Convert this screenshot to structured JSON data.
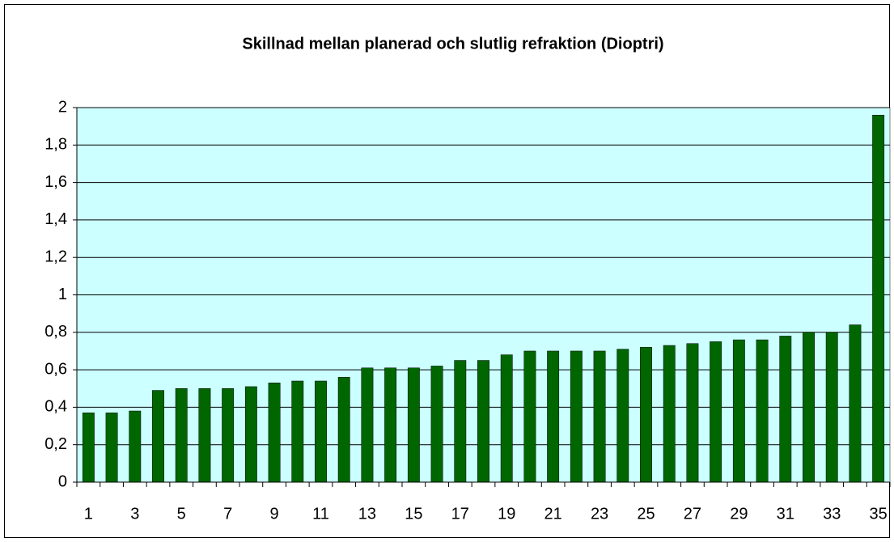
{
  "chart_data": {
    "type": "bar",
    "title": "Skillnad mellan planerad och slutlig refraktion (Dioptri)",
    "categories": [
      "1",
      null,
      "3",
      null,
      "5",
      null,
      "7",
      null,
      "9",
      null,
      "11",
      null,
      "13",
      null,
      "15",
      null,
      "17",
      null,
      "19",
      null,
      "21",
      null,
      "23",
      null,
      "25",
      null,
      "27",
      null,
      "29",
      null,
      "31",
      null,
      "33",
      null,
      "35"
    ],
    "values": [
      0.37,
      0.37,
      0.38,
      0.49,
      0.5,
      0.5,
      0.5,
      0.51,
      0.53,
      0.54,
      0.54,
      0.56,
      0.61,
      0.61,
      0.61,
      0.62,
      0.65,
      0.65,
      0.68,
      0.7,
      0.7,
      0.7,
      0.7,
      0.71,
      0.72,
      0.73,
      0.74,
      0.75,
      0.76,
      0.76,
      0.78,
      0.8,
      0.8,
      0.84,
      1.96
    ],
    "color": "#006600",
    "ylim": [
      0,
      2
    ],
    "yticks": [
      0,
      {
        "value": 0.2,
        "label": "0,2"
      },
      {
        "value": 0.4,
        "label": "0,4"
      },
      {
        "value": 0.6,
        "label": "0,6"
      },
      {
        "value": 0.8,
        "label": "0,8"
      },
      1,
      {
        "value": 1.2,
        "label": "1,2"
      },
      {
        "value": 1.4,
        "label": "1,4"
      },
      {
        "value": 1.6,
        "label": "1,6"
      },
      {
        "value": 1.8,
        "label": "1,8"
      },
      2
    ],
    "grid": true
  }
}
